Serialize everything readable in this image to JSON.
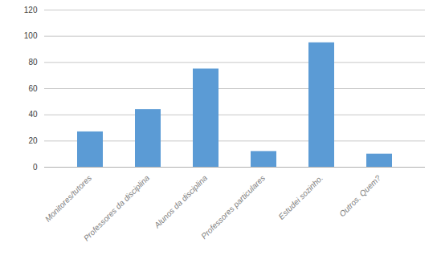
{
  "chart_data": {
    "type": "bar",
    "categories": [
      "Monitores/tutores",
      "Professores da disciplina",
      "Alunos da disciplina",
      "Professores particulares",
      "Estudei sozinho.",
      "Outros. Quem?"
    ],
    "values": [
      27,
      44,
      75,
      12,
      95,
      10
    ],
    "color": "#5b9bd5",
    "ylim": [
      0,
      120
    ],
    "yticks": [
      0,
      20,
      40,
      60,
      80,
      100,
      120
    ],
    "grid": true
  }
}
